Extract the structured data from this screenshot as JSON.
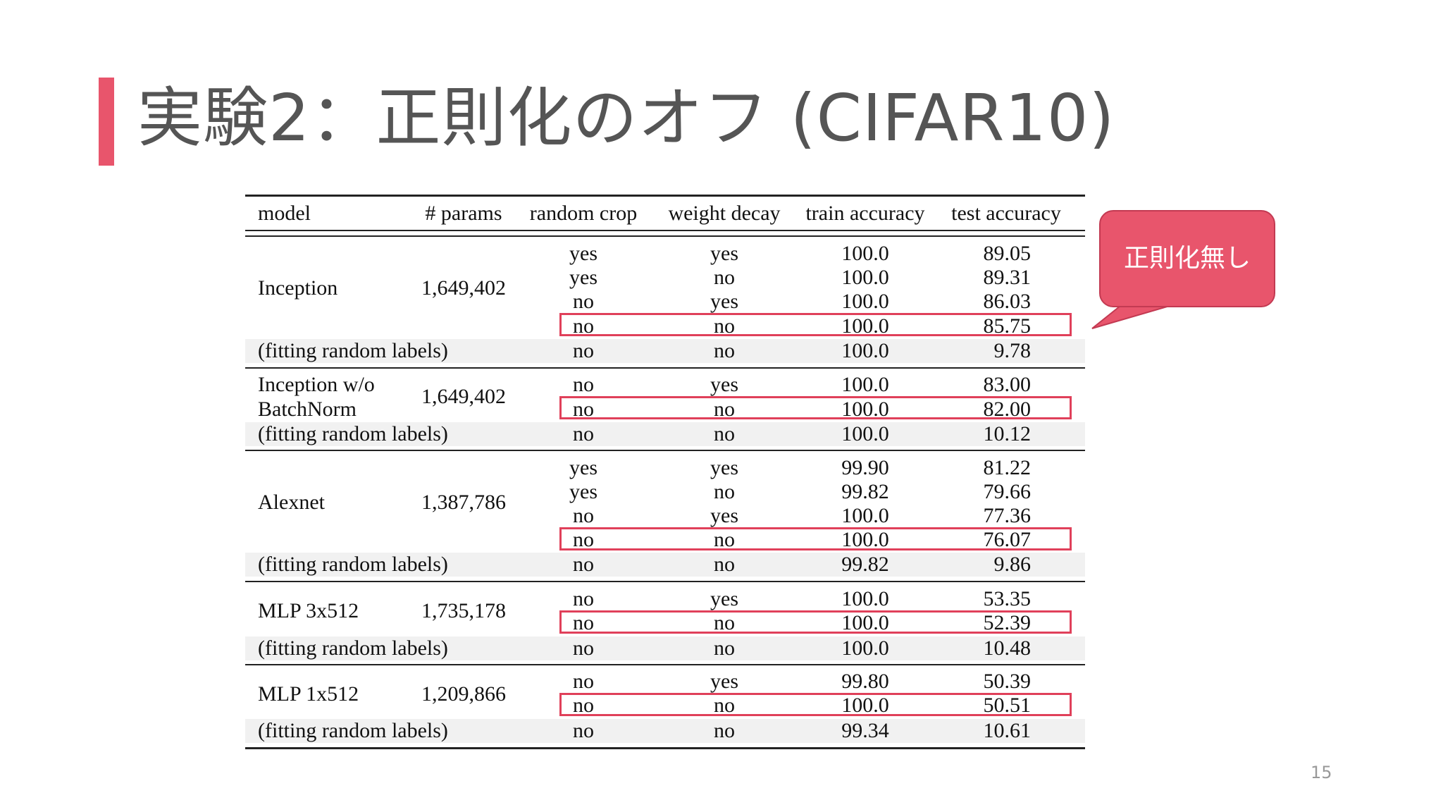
{
  "slide": {
    "title": "実験2：正則化のオフ (CIFAR10)",
    "callout": "正則化無し",
    "page_number": "15"
  },
  "table": {
    "headers": {
      "model": "model",
      "params": "# params",
      "random_crop": "random crop",
      "weight_decay": "weight decay",
      "train_accuracy": "train accuracy",
      "test_accuracy": "test accuracy"
    },
    "groups": [
      {
        "model": "Inception",
        "params": "1,649,402",
        "rows": [
          {
            "crop": "yes",
            "wd": "yes",
            "train": "100.0",
            "test": "89.05"
          },
          {
            "crop": "yes",
            "wd": "no",
            "train": "100.0",
            "test": "89.31"
          },
          {
            "crop": "no",
            "wd": "yes",
            "train": "100.0",
            "test": "86.03"
          },
          {
            "crop": "no",
            "wd": "no",
            "train": "100.0",
            "test": "85.75"
          }
        ],
        "random": {
          "label": "(fitting random labels)",
          "crop": "no",
          "wd": "no",
          "train": "100.0",
          "test": "9.78"
        }
      },
      {
        "model_line1": "Inception w/o",
        "model_line2": "BatchNorm",
        "params": "1,649,402",
        "rows": [
          {
            "crop": "no",
            "wd": "yes",
            "train": "100.0",
            "test": "83.00"
          },
          {
            "crop": "no",
            "wd": "no",
            "train": "100.0",
            "test": "82.00"
          }
        ],
        "random": {
          "label": "(fitting random labels)",
          "crop": "no",
          "wd": "no",
          "train": "100.0",
          "test": "10.12"
        }
      },
      {
        "model": "Alexnet",
        "params": "1,387,786",
        "rows": [
          {
            "crop": "yes",
            "wd": "yes",
            "train": "99.90",
            "test": "81.22"
          },
          {
            "crop": "yes",
            "wd": "no",
            "train": "99.82",
            "test": "79.66"
          },
          {
            "crop": "no",
            "wd": "yes",
            "train": "100.0",
            "test": "77.36"
          },
          {
            "crop": "no",
            "wd": "no",
            "train": "100.0",
            "test": "76.07"
          }
        ],
        "random": {
          "label": "(fitting random labels)",
          "crop": "no",
          "wd": "no",
          "train": "99.82",
          "test": "9.86"
        }
      },
      {
        "model": "MLP 3x512",
        "params": "1,735,178",
        "rows": [
          {
            "crop": "no",
            "wd": "yes",
            "train": "100.0",
            "test": "53.35"
          },
          {
            "crop": "no",
            "wd": "no",
            "train": "100.0",
            "test": "52.39"
          }
        ],
        "random": {
          "label": "(fitting random labels)",
          "crop": "no",
          "wd": "no",
          "train": "100.0",
          "test": "10.48"
        }
      },
      {
        "model": "MLP 1x512",
        "params": "1,209,866",
        "rows": [
          {
            "crop": "no",
            "wd": "yes",
            "train": "99.80",
            "test": "50.39"
          },
          {
            "crop": "no",
            "wd": "no",
            "train": "100.0",
            "test": "50.51"
          }
        ],
        "random": {
          "label": "(fitting random labels)",
          "crop": "no",
          "wd": "no",
          "train": "99.34",
          "test": "10.61"
        }
      }
    ]
  },
  "colors": {
    "accent": "#e8556c",
    "highlight_border": "#e0405a",
    "title_text": "#555555"
  }
}
